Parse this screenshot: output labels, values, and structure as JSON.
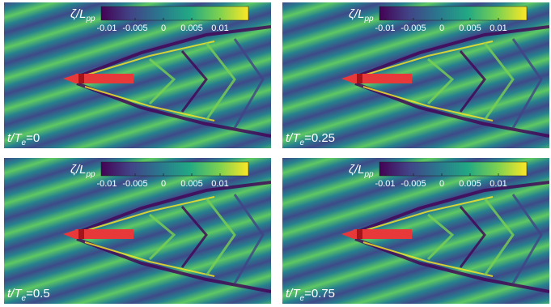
{
  "chart_data": [
    {
      "type": "heatmap",
      "colorbar_label": "ζ/L",
      "colorbar_label_sub": "pp",
      "clim": [
        -0.011,
        0.015
      ],
      "cticks": [
        -0.01,
        -0.005,
        0,
        0.005,
        0.01
      ],
      "time_label": "t/T",
      "time_label_sub": "e",
      "time_value": "=0"
    },
    {
      "type": "heatmap",
      "colorbar_label": "ζ/L",
      "colorbar_label_sub": "pp",
      "clim": [
        -0.011,
        0.015
      ],
      "cticks": [
        -0.01,
        -0.005,
        0,
        0.005,
        0.01
      ],
      "time_label": "t/T",
      "time_label_sub": "e",
      "time_value": "=0.25"
    },
    {
      "type": "heatmap",
      "colorbar_label": "ζ/L",
      "colorbar_label_sub": "pp",
      "clim": [
        -0.011,
        0.015
      ],
      "cticks": [
        -0.01,
        -0.005,
        0,
        0.005,
        0.01
      ],
      "time_label": "t/T",
      "time_label_sub": "e",
      "time_value": "=0.5"
    },
    {
      "type": "heatmap",
      "colorbar_label": "ζ/L",
      "colorbar_label_sub": "pp",
      "clim": [
        -0.011,
        0.015
      ],
      "cticks": [
        -0.01,
        -0.005,
        0,
        0.005,
        0.01
      ],
      "time_label": "t/T",
      "time_label_sub": "e",
      "time_value": "=0.75"
    }
  ]
}
